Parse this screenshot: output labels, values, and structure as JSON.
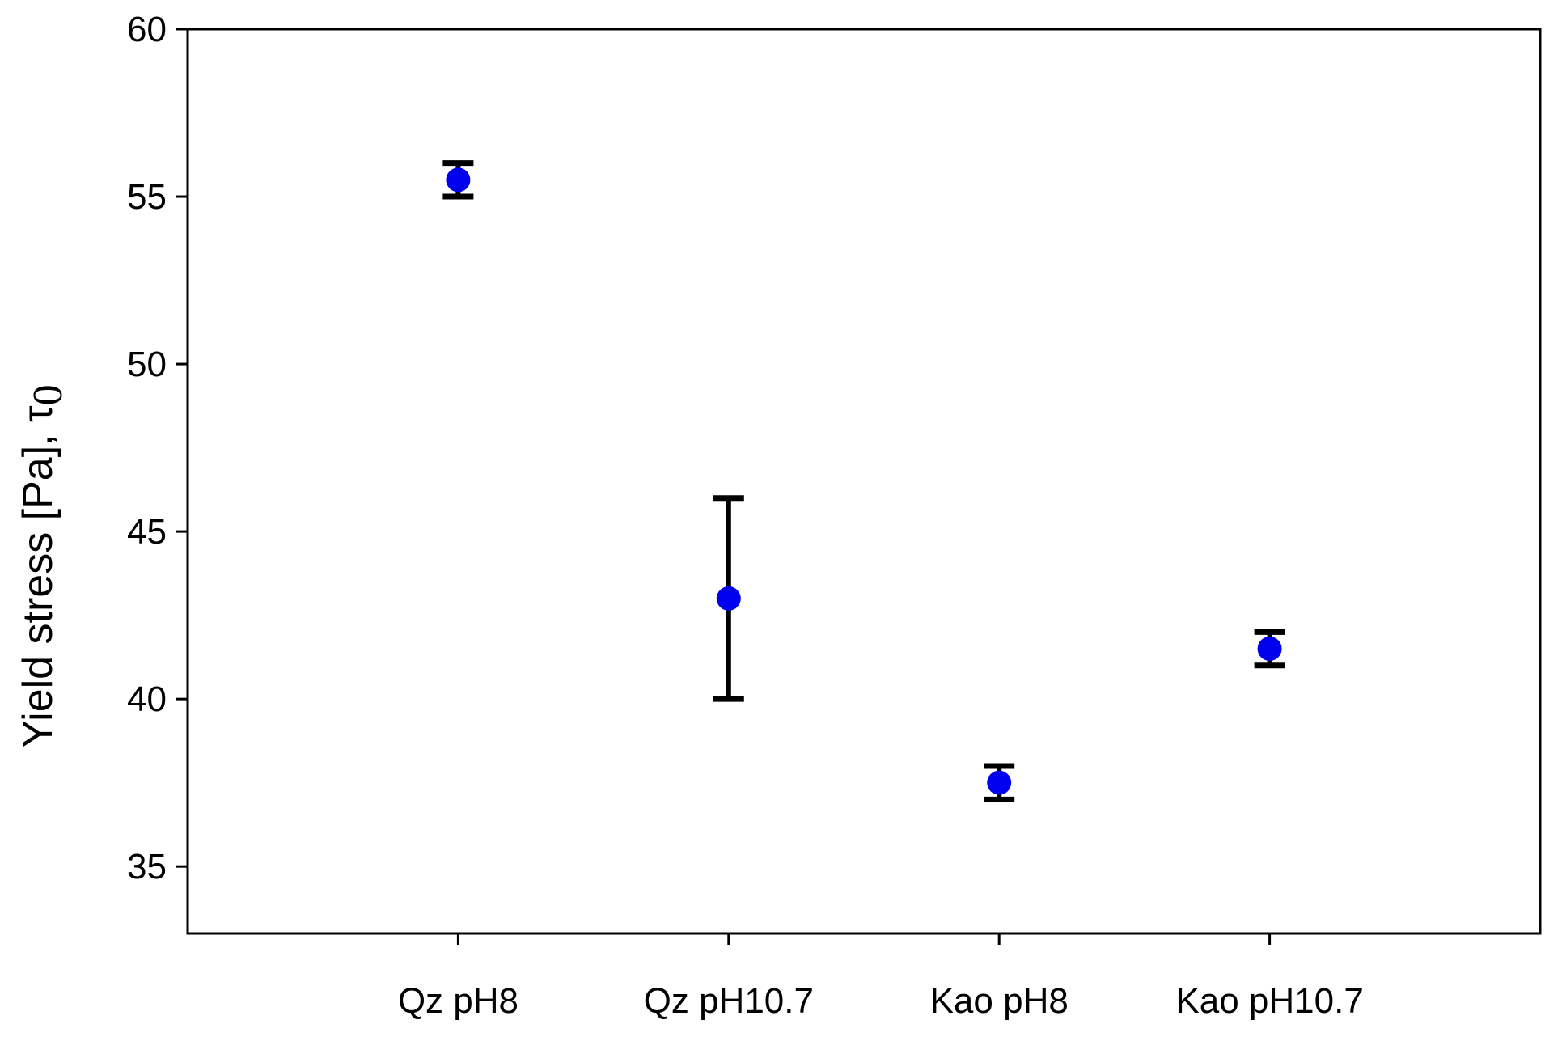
{
  "chart_data": {
    "type": "scatter",
    "title": "",
    "xlabel": "",
    "ylabel": "Yield stress [Pa], τ0",
    "ylim": [
      33,
      60
    ],
    "yticks": [
      35,
      40,
      45,
      50,
      55,
      60
    ],
    "categories": [
      "Qz pH8",
      "Qz pH10.7",
      "Kao pH8",
      "Kao pH10.7"
    ],
    "series": [
      {
        "values": [
          55.5,
          43.0,
          37.5,
          41.5
        ],
        "err_low": [
          55.0,
          40.0,
          37.0,
          41.0
        ],
        "err_high": [
          56.0,
          46.0,
          38.0,
          42.0
        ],
        "color": "#0000ee"
      }
    ],
    "grid": false,
    "legend": "none"
  }
}
